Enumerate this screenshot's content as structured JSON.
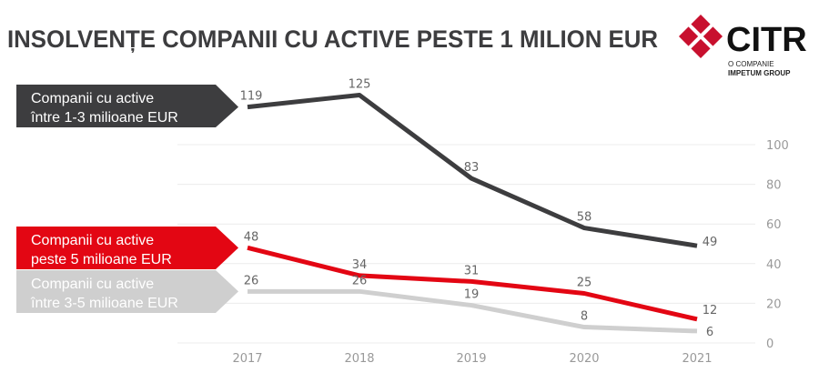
{
  "title": "INSOLVENȚE COMPANII CU ACTIVE PESTE 1 MILION EUR",
  "logo": {
    "name": "CITR",
    "line1": "O COMPANIE",
    "line2": "IMPETUM GROUP",
    "color": "#c8102e"
  },
  "chart_data": {
    "type": "line",
    "title": "INSOLVENȚE COMPANII CU ACTIVE PESTE 1 MILION EUR",
    "categories": [
      "2017",
      "2018",
      "2019",
      "2020",
      "2021"
    ],
    "ylim": [
      0,
      130
    ],
    "yticks": [
      "0",
      "20",
      "40",
      "60",
      "80",
      "100"
    ],
    "grid": true,
    "series": [
      {
        "name_line1": "Companii cu active",
        "name_line2": "între 1-3 milioane EUR",
        "color": "#3d3d3f",
        "values": [
          119,
          125,
          83,
          58,
          49
        ]
      },
      {
        "name_line1": "Companii cu active",
        "name_line2": "peste 5 milioane EUR",
        "color": "#e30613",
        "values": [
          48,
          34,
          31,
          25,
          12
        ]
      },
      {
        "name_line1": "Companii cu active",
        "name_line2": "între 3-5 milioane EUR",
        "color": "#cfcfcf",
        "values": [
          26,
          26,
          19,
          8,
          6
        ]
      }
    ]
  }
}
